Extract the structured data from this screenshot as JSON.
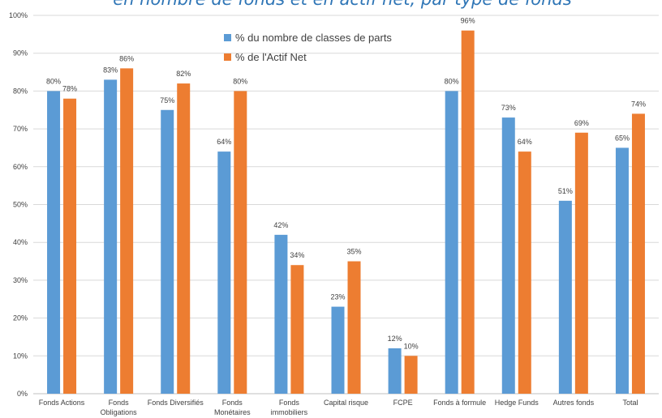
{
  "chart_data": {
    "type": "bar",
    "title": "en nombre de fonds et en actif net, par type de fonds",
    "categories": [
      [
        "Fonds Actions"
      ],
      [
        "Fonds",
        "Obligations"
      ],
      [
        "Fonds Diversifiés"
      ],
      [
        "Fonds",
        "Monétaires"
      ],
      [
        "Fonds",
        "immobiliers"
      ],
      [
        "Capital risque"
      ],
      [
        "FCPE"
      ],
      [
        "Fonds à formule"
      ],
      [
        "Hedge Funds"
      ],
      [
        "Autres fonds"
      ],
      [
        "Total"
      ]
    ],
    "series": [
      {
        "name": "% du nombre de classes de parts",
        "color": "#5b9bd5",
        "values": [
          80,
          83,
          75,
          64,
          42,
          23,
          12,
          80,
          73,
          51,
          65
        ],
        "labels": [
          "80%",
          "83%",
          "75%",
          "64%",
          "42%",
          "23%",
          "12%",
          "80%",
          "73%",
          "51%",
          "65%"
        ]
      },
      {
        "name": "% de l'Actif Net",
        "color": "#ed7d31",
        "values": [
          78,
          86,
          82,
          80,
          34,
          35,
          10,
          96,
          64,
          69,
          74
        ],
        "labels": [
          "78%",
          "86%",
          "82%",
          "80%",
          "34%",
          "35%",
          "10%",
          "96%",
          "64%",
          "69%",
          "74%"
        ]
      }
    ],
    "ylim": [
      0,
      100
    ],
    "yticks": [
      "0%",
      "10%",
      "20%",
      "30%",
      "40%",
      "50%",
      "60%",
      "70%",
      "80%",
      "90%",
      "100%"
    ],
    "grid": true,
    "legend_position": "top-left",
    "title_color": "#2e75b6"
  }
}
